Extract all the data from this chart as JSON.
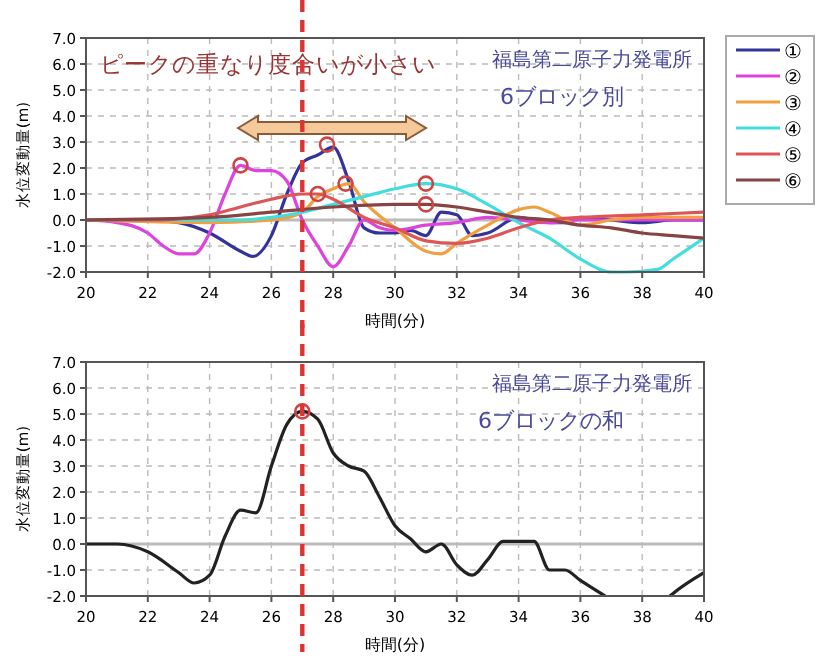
{
  "chart_data": [
    {
      "type": "line",
      "title": "福島第二原子力発電所",
      "subtitle": "6ブロック別",
      "xlabel": "時間(分)",
      "ylabel": "水位変動量(m)",
      "xlim": [
        20,
        40
      ],
      "ylim": [
        -2,
        7
      ],
      "xticks": [
        20,
        22,
        24,
        26,
        28,
        30,
        32,
        34,
        36,
        38,
        40
      ],
      "yticks": [
        {
          "value": -2,
          "label": "-2.0"
        },
        {
          "value": -1,
          "label": "-1.0"
        },
        {
          "value": 0,
          "label": "0.0"
        },
        {
          "value": 1,
          "label": "1.0"
        },
        {
          "value": 2,
          "label": "2.0"
        },
        {
          "value": 3,
          "label": "3.0"
        },
        {
          "value": 4,
          "label": "4.0"
        },
        {
          "value": 5,
          "label": "5.0"
        },
        {
          "value": 6,
          "label": "6.0"
        },
        {
          "value": 7,
          "label": "7.0"
        }
      ],
      "grid": true,
      "legend": "right",
      "line_style": "solid",
      "annotations": [
        "ピークの重なり度合いが小さい"
      ],
      "ref_lines": [
        {
          "axis": "x",
          "value": 27,
          "color": "#dd3333",
          "line_style": "dashed"
        },
        {
          "axis": "y",
          "value": 0,
          "color": "#bbbbbb",
          "line_style": "solid"
        }
      ],
      "series": [
        {
          "name": "①",
          "color": "#333399",
          "x": [
            20,
            22,
            23,
            24,
            25,
            25.4,
            26,
            26.5,
            27,
            27.5,
            28,
            28.5,
            29,
            29.5,
            30,
            30.5,
            31,
            31.5,
            32,
            32.5,
            33,
            34,
            35,
            35.5,
            36,
            37,
            38,
            39,
            40
          ],
          "values": [
            0,
            0,
            -0.1,
            -0.5,
            -1.2,
            -1.4,
            -0.6,
            1.0,
            2.2,
            2.5,
            2.8,
            1.5,
            -0.3,
            -0.5,
            -0.5,
            -0.4,
            -0.6,
            0.3,
            0.2,
            -0.6,
            -0.5,
            0.1,
            -0.1,
            -0.1,
            0.1,
            0,
            -0.1,
            0,
            0
          ]
        },
        {
          "name": "②",
          "color": "#dd44dd",
          "x": [
            20,
            21,
            22,
            22.5,
            23,
            23.5,
            24,
            24.5,
            25,
            25.5,
            26,
            26.5,
            27,
            27.5,
            28,
            28.5,
            29,
            29.5,
            30,
            31,
            32,
            33,
            34,
            35,
            36,
            38,
            40
          ],
          "values": [
            0,
            -0.1,
            -0.5,
            -1.0,
            -1.3,
            -1.3,
            -0.5,
            1.0,
            2.1,
            1.9,
            1.9,
            1.5,
            0,
            -1.0,
            -1.8,
            -1.0,
            0,
            -0.3,
            -0.4,
            -0.2,
            -0.1,
            0.1,
            0,
            -0.1,
            0,
            0,
            0
          ]
        },
        {
          "name": "③",
          "color": "#f0a040",
          "x": [
            20,
            24,
            26,
            27,
            27.5,
            28,
            28.5,
            29,
            30,
            31,
            31.5,
            32,
            33,
            34,
            34.5,
            35,
            36,
            37,
            38,
            40
          ],
          "values": [
            0,
            -0.1,
            0,
            0.3,
            0.9,
            1.2,
            1.4,
            0.7,
            -0.3,
            -1.2,
            -1.3,
            -0.9,
            -0.2,
            0.4,
            0.5,
            0.3,
            -0.2,
            0,
            0.1,
            0.1
          ]
        },
        {
          "name": "④",
          "color": "#44dddd",
          "x": [
            20,
            25,
            26,
            27,
            28,
            29,
            30,
            31,
            32,
            33,
            34,
            35,
            36,
            37,
            37.5,
            38.5,
            39,
            40
          ],
          "values": [
            0,
            0,
            0.1,
            0.3,
            0.6,
            0.9,
            1.2,
            1.4,
            1.2,
            0.6,
            -0.1,
            -0.7,
            -1.5,
            -2.0,
            -2.0,
            -1.9,
            -1.5,
            -0.7
          ]
        },
        {
          "name": "⑤",
          "color": "#dd5555",
          "x": [
            20,
            22,
            24,
            25,
            26,
            27,
            27.5,
            28,
            29,
            30,
            31,
            32,
            33,
            34,
            35,
            36,
            38,
            40
          ],
          "values": [
            0,
            0,
            0.2,
            0.5,
            0.8,
            1.0,
            1.0,
            0.8,
            0.1,
            -0.3,
            -0.8,
            -0.9,
            -0.7,
            -0.3,
            0,
            0.1,
            0.2,
            0.3
          ]
        },
        {
          "name": "⑥",
          "color": "#884444",
          "x": [
            20,
            24,
            26,
            28,
            30,
            31,
            32,
            33,
            34,
            35,
            36,
            37,
            38,
            39,
            40
          ],
          "values": [
            0,
            0.1,
            0.3,
            0.5,
            0.6,
            0.6,
            0.5,
            0.3,
            0.1,
            0,
            -0.2,
            -0.3,
            -0.5,
            -0.6,
            -0.7
          ]
        },
        {
          "type": "scatter",
          "marker": "circle",
          "color": "#cc4444",
          "x": [
            25,
            27.8,
            27.5,
            28.4,
            31,
            31
          ],
          "values": [
            2.1,
            2.9,
            1.0,
            1.4,
            1.4,
            0.6
          ]
        }
      ]
    },
    {
      "type": "line",
      "title": "福島第二原子力発電所",
      "subtitle": "6ブロックの和",
      "xlabel": "時間(分)",
      "ylabel": "水位変動量(m)",
      "xlim": [
        20,
        40
      ],
      "ylim": [
        -2,
        7
      ],
      "xticks": [
        20,
        22,
        24,
        26,
        28,
        30,
        32,
        34,
        36,
        38,
        40
      ],
      "yticks": [
        {
          "value": -2,
          "label": "-2.0"
        },
        {
          "value": -1,
          "label": "-1.0"
        },
        {
          "value": 0,
          "label": "0.0"
        },
        {
          "value": 1,
          "label": "1.0"
        },
        {
          "value": 2,
          "label": "2.0"
        },
        {
          "value": 3,
          "label": "3.0"
        },
        {
          "value": 4,
          "label": "4.0"
        },
        {
          "value": 5,
          "label": "5.0"
        },
        {
          "value": 6,
          "label": "6.0"
        },
        {
          "value": 7,
          "label": "7.0"
        }
      ],
      "grid": true,
      "line_style": "solid",
      "ref_lines": [
        {
          "axis": "x",
          "value": 27,
          "color": "#dd3333",
          "line_style": "dashed"
        },
        {
          "axis": "y",
          "value": 0,
          "color": "#bbbbbb",
          "line_style": "solid"
        }
      ],
      "series": [
        {
          "color": "#222222",
          "x": [
            20,
            21,
            22,
            23,
            23.5,
            24,
            24.5,
            25,
            25.5,
            26,
            26.5,
            27,
            27.5,
            28,
            28.5,
            29,
            29.5,
            30,
            30.5,
            31,
            31.5,
            32,
            32.5,
            33,
            33.5,
            34,
            34.5,
            35,
            35.5,
            36,
            36.8,
            37,
            38.5,
            38.9,
            39,
            40
          ],
          "values": [
            0,
            0,
            -0.3,
            -1.1,
            -1.5,
            -1.2,
            0.3,
            1.3,
            1.2,
            3.0,
            4.6,
            5.1,
            4.8,
            3.5,
            3.0,
            2.8,
            1.8,
            0.7,
            0.2,
            -0.3,
            0,
            -0.8,
            -1.2,
            -0.6,
            0.1,
            0.1,
            0.1,
            -1.0,
            -1.0,
            -1.4,
            -2.0,
            null,
            null,
            -2.0,
            -1.9,
            -1.1
          ]
        },
        {
          "type": "scatter",
          "marker": "circle",
          "color": "#cc4444",
          "x": [
            27
          ],
          "values": [
            5.1
          ]
        }
      ]
    }
  ]
}
